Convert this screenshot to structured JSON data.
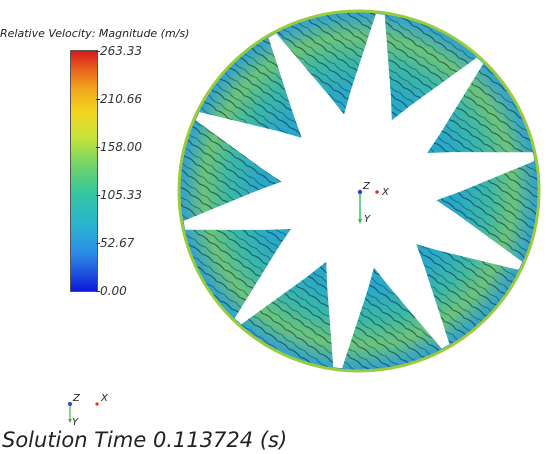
{
  "legend": {
    "title": "Relative Velocity: Magnitude (m/s)",
    "ticks": [
      "263.33",
      "210.66",
      "158.00",
      "105.33",
      "52.67",
      "0.00"
    ],
    "min": 0.0,
    "max": 263.33,
    "colormap": [
      "#0b17d8",
      "#2b8ee6",
      "#29b5cf",
      "#33c5a2",
      "#6fd36a",
      "#c6e33a",
      "#f4d620",
      "#f2a81d",
      "#e8651c",
      "#d7191c"
    ]
  },
  "view": {
    "axes_center": {
      "z": "Z",
      "x": "X",
      "y": "Y"
    },
    "axes_corner": {
      "z": "Z",
      "x": "X",
      "y": "Y"
    },
    "blade_count": 10
  },
  "footer": {
    "solution_time": "Solution Time 0.113724 (s)"
  }
}
